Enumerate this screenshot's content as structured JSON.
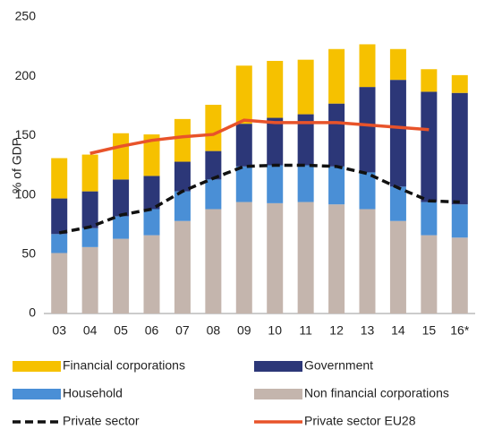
{
  "chart_data": {
    "type": "bar",
    "stacked": true,
    "y_label": "% of GDP",
    "categories": [
      "03",
      "04",
      "05",
      "06",
      "07",
      "08",
      "09",
      "10",
      "11",
      "12",
      "13",
      "14",
      "15",
      "16*"
    ],
    "ylim": [
      0,
      250
    ],
    "yticks": [
      0,
      50,
      100,
      150,
      200,
      250
    ],
    "series": [
      {
        "name": "Non financial corporations",
        "type": "bar",
        "color": "#c4b5ad",
        "values": [
          51,
          56,
          63,
          66,
          78,
          88,
          94,
          93,
          94,
          92,
          88,
          78,
          66,
          64
        ]
      },
      {
        "name": "Household",
        "type": "bar",
        "color": "#4a8fd6",
        "values": [
          16,
          16,
          19,
          22,
          25,
          25,
          30,
          32,
          31,
          32,
          31,
          29,
          28,
          28
        ]
      },
      {
        "name": "Government",
        "type": "bar",
        "color": "#2c3778",
        "values": [
          30,
          31,
          31,
          28,
          25,
          24,
          36,
          40,
          43,
          53,
          72,
          90,
          93,
          94
        ]
      },
      {
        "name": "Financial corporations",
        "type": "bar",
        "color": "#f6c100",
        "values": [
          34,
          31,
          39,
          35,
          36,
          39,
          49,
          48,
          46,
          46,
          36,
          26,
          19,
          15
        ]
      },
      {
        "name": "Private sector",
        "type": "line",
        "color": "#111111",
        "dashed": true,
        "values": [
          68,
          73,
          83,
          88,
          103,
          114,
          124,
          125,
          125,
          124,
          118,
          106,
          95,
          94
        ]
      },
      {
        "name": "Private sector EU28",
        "type": "line",
        "color": "#e8532a",
        "dashed": false,
        "values": [
          null,
          135,
          141,
          146,
          149,
          151,
          163,
          161,
          161,
          161,
          159,
          157,
          155,
          null
        ]
      }
    ],
    "legend_order": [
      3,
      2,
      1,
      0,
      4,
      5
    ]
  }
}
